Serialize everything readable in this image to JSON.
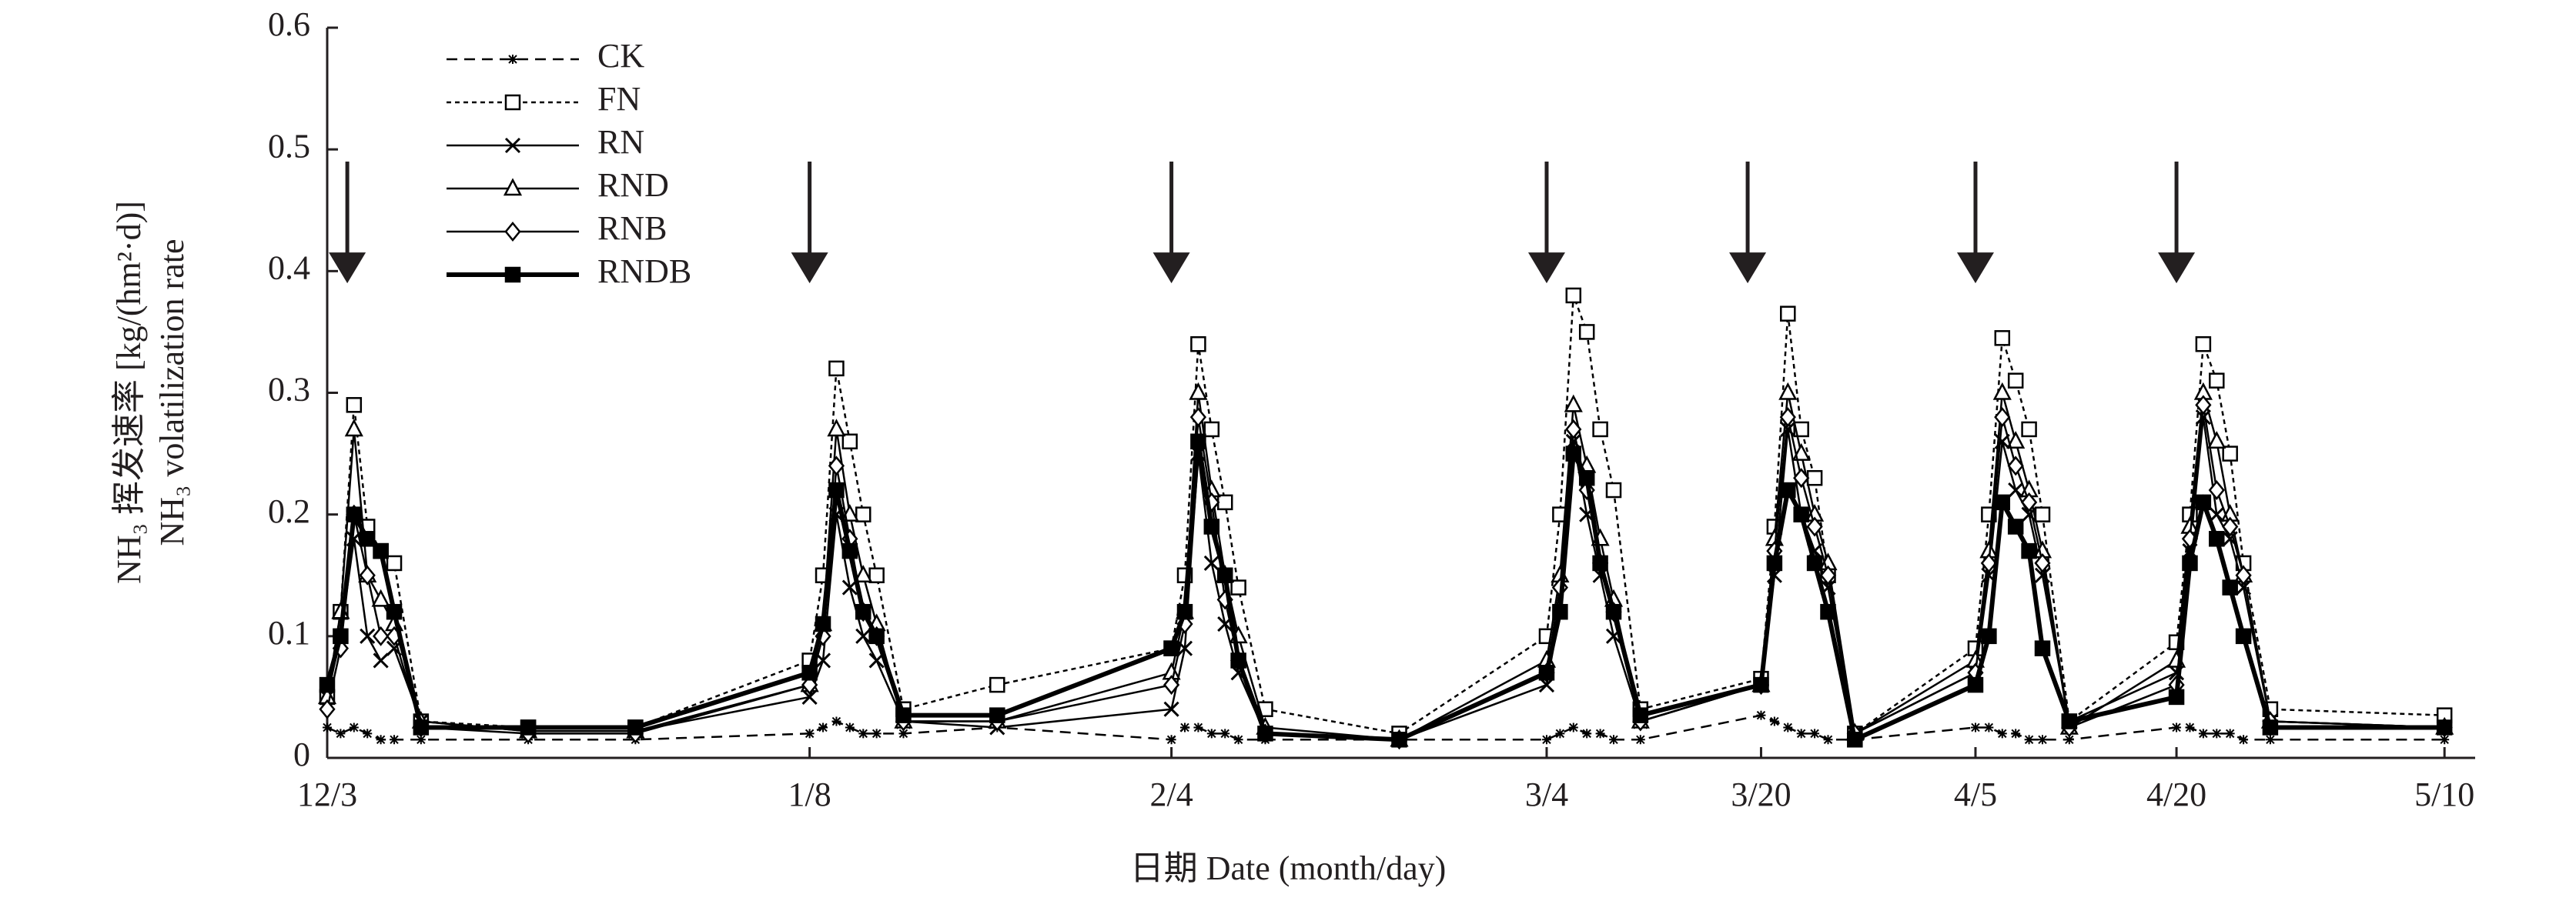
{
  "chart_data": {
    "type": "line",
    "ylabel": [
      "NH₃ 挥发速率 [kg/(hm²·d)]",
      "NH₃ volatilization rate"
    ],
    "xlabel": "日期 Date (month/day)",
    "x": [
      0,
      1,
      2,
      3,
      4,
      5,
      7,
      15,
      23,
      36,
      37,
      38,
      39,
      40,
      41,
      43,
      50,
      63,
      64,
      65,
      66,
      67,
      68,
      70,
      80,
      91,
      92,
      93,
      94,
      95,
      96,
      98,
      107,
      108,
      109,
      110,
      111,
      112,
      114,
      123,
      124,
      125,
      126,
      127,
      128,
      130,
      138,
      139,
      140,
      141,
      142,
      143,
      145,
      158
    ],
    "xlim": [
      0,
      160
    ],
    "xticks": [
      {
        "value": 0,
        "label": "12/3"
      },
      {
        "value": 36,
        "label": "1/8"
      },
      {
        "value": 63,
        "label": "2/4"
      },
      {
        "value": 91,
        "label": "3/4"
      },
      {
        "value": 107,
        "label": "3/20"
      },
      {
        "value": 123,
        "label": "4/5"
      },
      {
        "value": 138,
        "label": "4/20"
      },
      {
        "value": 158,
        "label": "5/10"
      }
    ],
    "ylim": [
      0,
      0.6
    ],
    "yticks": [
      0,
      0.1,
      0.2,
      0.3,
      0.4,
      0.5,
      0.6
    ],
    "legend": "upper-left",
    "arrows": [
      1.5,
      36,
      63,
      91,
      106,
      123,
      138
    ],
    "series": [
      {
        "name": "CK",
        "color": "#000000",
        "dash": "dashed",
        "marker": "star",
        "line_width": 2.5,
        "values": [
          0.025,
          0.02,
          0.025,
          0.02,
          0.015,
          0.015,
          0.015,
          0.015,
          0.015,
          0.02,
          0.025,
          0.03,
          0.025,
          0.02,
          0.02,
          0.02,
          0.025,
          0.015,
          0.025,
          0.025,
          0.02,
          0.02,
          0.015,
          0.015,
          0.015,
          0.015,
          0.02,
          0.025,
          0.02,
          0.02,
          0.015,
          0.015,
          0.035,
          0.03,
          0.025,
          0.02,
          0.02,
          0.015,
          0.015,
          0.025,
          0.025,
          0.02,
          0.02,
          0.015,
          0.015,
          0.015,
          0.025,
          0.025,
          0.02,
          0.02,
          0.02,
          0.015,
          0.015,
          0.015
        ]
      },
      {
        "name": "FN",
        "color": "#000000",
        "dash": "dotted",
        "marker": "square-open",
        "line_width": 2.5,
        "values": [
          0.05,
          0.12,
          0.29,
          0.19,
          0.17,
          0.16,
          0.03,
          0.025,
          0.025,
          0.08,
          0.15,
          0.32,
          0.26,
          0.2,
          0.15,
          0.04,
          0.06,
          0.09,
          0.15,
          0.34,
          0.27,
          0.21,
          0.14,
          0.04,
          0.02,
          0.1,
          0.2,
          0.38,
          0.35,
          0.27,
          0.22,
          0.04,
          0.065,
          0.19,
          0.365,
          0.27,
          0.23,
          0.15,
          0.02,
          0.09,
          0.2,
          0.345,
          0.31,
          0.27,
          0.2,
          0.03,
          0.095,
          0.2,
          0.34,
          0.31,
          0.25,
          0.16,
          0.04,
          0.035
        ]
      },
      {
        "name": "RN",
        "color": "#000000",
        "dash": "solid",
        "marker": "x",
        "line_width": 2.5,
        "values": [
          0.05,
          0.1,
          0.18,
          0.1,
          0.08,
          0.09,
          0.03,
          0.022,
          0.022,
          0.05,
          0.08,
          0.2,
          0.14,
          0.1,
          0.08,
          0.03,
          0.025,
          0.04,
          0.09,
          0.25,
          0.16,
          0.11,
          0.07,
          0.02,
          0.015,
          0.06,
          0.12,
          0.26,
          0.2,
          0.15,
          0.1,
          0.03,
          0.06,
          0.15,
          0.27,
          0.2,
          0.17,
          0.14,
          0.02,
          0.07,
          0.15,
          0.26,
          0.22,
          0.2,
          0.15,
          0.03,
          0.07,
          0.17,
          0.28,
          0.2,
          0.18,
          0.14,
          0.03,
          0.025
        ]
      },
      {
        "name": "RND",
        "color": "#000000",
        "dash": "solid",
        "marker": "triangle-open",
        "line_width": 2.5,
        "values": [
          0.05,
          0.12,
          0.27,
          0.15,
          0.13,
          0.11,
          0.03,
          0.022,
          0.022,
          0.06,
          0.11,
          0.27,
          0.2,
          0.15,
          0.11,
          0.03,
          0.03,
          0.07,
          0.12,
          0.3,
          0.22,
          0.15,
          0.1,
          0.025,
          0.015,
          0.08,
          0.15,
          0.29,
          0.24,
          0.18,
          0.13,
          0.03,
          0.06,
          0.18,
          0.3,
          0.25,
          0.2,
          0.16,
          0.02,
          0.08,
          0.17,
          0.3,
          0.26,
          0.22,
          0.17,
          0.025,
          0.08,
          0.19,
          0.3,
          0.26,
          0.2,
          0.15,
          0.03,
          0.025
        ]
      },
      {
        "name": "RNB",
        "color": "#000000",
        "dash": "solid",
        "marker": "diamond-open",
        "line_width": 2.5,
        "values": [
          0.04,
          0.09,
          0.2,
          0.15,
          0.1,
          0.1,
          0.025,
          0.02,
          0.02,
          0.06,
          0.1,
          0.24,
          0.18,
          0.12,
          0.1,
          0.03,
          0.03,
          0.06,
          0.11,
          0.28,
          0.21,
          0.13,
          0.08,
          0.02,
          0.015,
          0.07,
          0.14,
          0.27,
          0.22,
          0.16,
          0.12,
          0.03,
          0.06,
          0.17,
          0.28,
          0.23,
          0.19,
          0.15,
          0.02,
          0.07,
          0.16,
          0.28,
          0.24,
          0.21,
          0.16,
          0.025,
          0.06,
          0.18,
          0.29,
          0.22,
          0.19,
          0.15,
          0.03,
          0.025
        ]
      },
      {
        "name": "RNDB",
        "color": "#000000",
        "dash": "solid",
        "marker": "square-filled",
        "line_width": 6,
        "values": [
          0.06,
          0.1,
          0.2,
          0.18,
          0.17,
          0.12,
          0.025,
          0.025,
          0.025,
          0.07,
          0.11,
          0.22,
          0.17,
          0.12,
          0.1,
          0.035,
          0.035,
          0.09,
          0.12,
          0.26,
          0.19,
          0.15,
          0.08,
          0.02,
          0.015,
          0.07,
          0.12,
          0.25,
          0.23,
          0.16,
          0.12,
          0.035,
          0.06,
          0.16,
          0.22,
          0.2,
          0.16,
          0.12,
          0.015,
          0.06,
          0.1,
          0.21,
          0.19,
          0.17,
          0.09,
          0.03,
          0.05,
          0.16,
          0.21,
          0.18,
          0.14,
          0.1,
          0.025,
          0.025
        ]
      }
    ]
  }
}
